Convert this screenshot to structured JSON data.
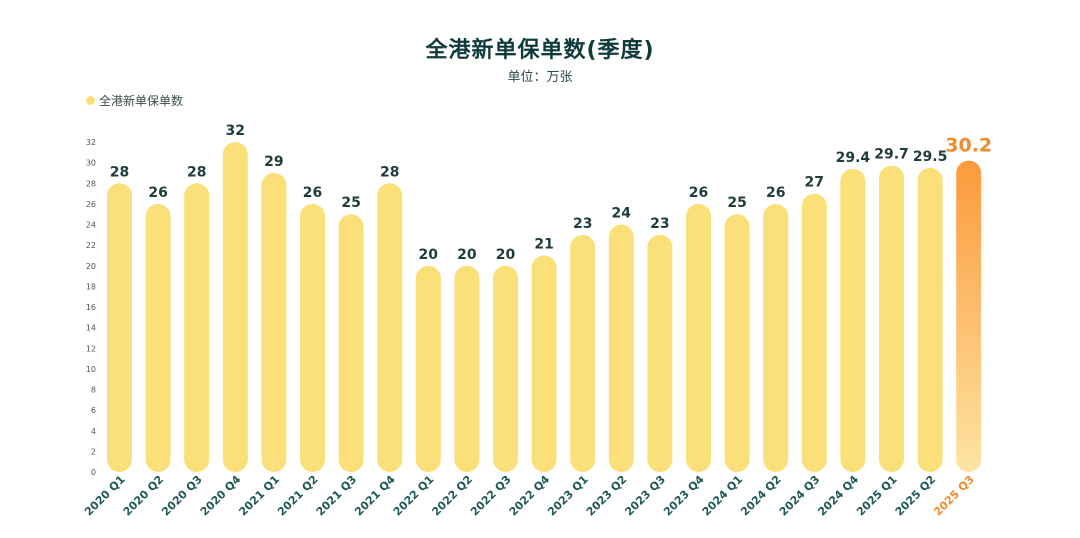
{
  "title": "全港新单保单数(季度)",
  "subtitle": "单位：万张",
  "legend": {
    "label": "全港新单保单数"
  },
  "colors": {
    "bar": "#fbe07a",
    "highlight_top": "#fb9a3c",
    "highlight_bottom": "#fde4a2",
    "label": "#1f3d3d",
    "highlight_label": "#f28b2c",
    "x_label": "#1f5757"
  },
  "chart_data": {
    "type": "bar",
    "title": "全港新单保单数(季度)",
    "subtitle": "单位：万张",
    "xlabel": "",
    "ylabel": "",
    "ylim": [
      0,
      32
    ],
    "yticks": [
      0,
      2,
      4,
      6,
      8,
      10,
      12,
      14,
      16,
      18,
      20,
      22,
      24,
      26,
      28,
      30,
      32
    ],
    "legend": "top-left",
    "grid": false,
    "categories": [
      "2020 Q1",
      "2020 Q2",
      "2020 Q3",
      "2020 Q4",
      "2021 Q1",
      "2021 Q2",
      "2021 Q3",
      "2021 Q4",
      "2022 Q1",
      "2022 Q2",
      "2022 Q3",
      "2022 Q4",
      "2023 Q1",
      "2023 Q2",
      "2023 Q3",
      "2023 Q4",
      "2024 Q1",
      "2024 Q2",
      "2024 Q3",
      "2024 Q4",
      "2025 Q1",
      "2025 Q2",
      "2025 Q3"
    ],
    "series": [
      {
        "name": "全港新单保单数",
        "values": [
          28,
          26,
          28,
          32,
          29,
          26,
          25,
          28,
          20,
          20,
          20,
          21,
          23,
          24,
          23,
          26,
          25,
          26,
          27,
          29.4,
          29.7,
          29.5,
          30.2
        ],
        "labels": [
          "28",
          "26",
          "28",
          "32",
          "29",
          "26",
          "25",
          "28",
          "20",
          "20",
          "20",
          "21",
          "23",
          "24",
          "23",
          "26",
          "25",
          "26",
          "27",
          "29.4",
          "29.7",
          "29.5",
          "30.2"
        ]
      }
    ],
    "highlight_category": "2025 Q3"
  }
}
